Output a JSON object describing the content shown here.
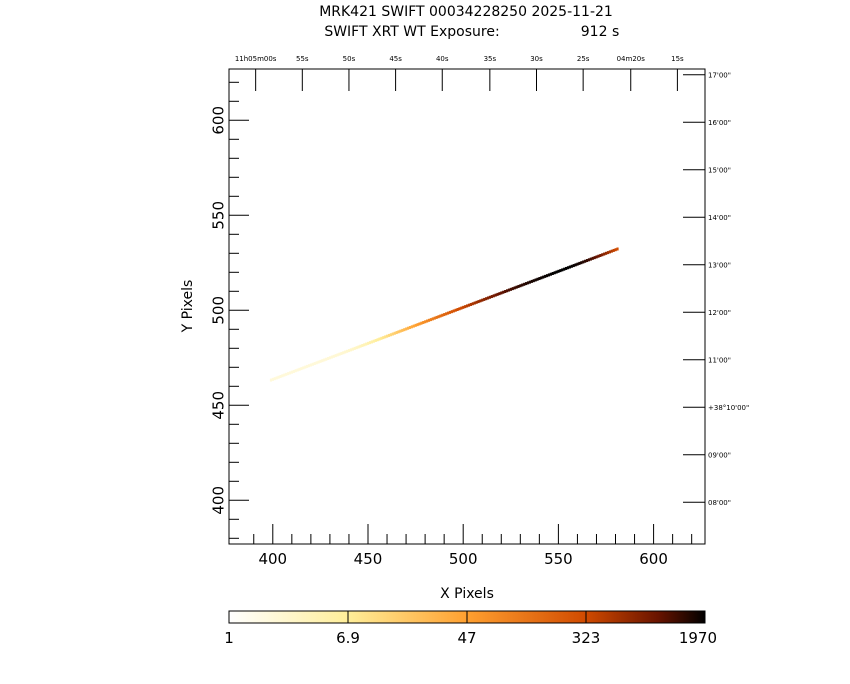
{
  "title_line1": "MRK421 SWIFT 00034228250 2025-11-21",
  "title_line2_prefix": "SWIFT XRT WT Exposure:",
  "title_line2_value": "912 s",
  "chart_data": {
    "type": "heatmap",
    "title": "MRK421 SWIFT 00034228250 2025-11-21",
    "subtitle": "SWIFT XRT WT Exposure: 912 s",
    "xlabel": "X Pixels",
    "ylabel": "Y Pixels",
    "xlim": [
      377,
      627
    ],
    "ylim": [
      377,
      627
    ],
    "x_ticks": [
      400,
      450,
      500,
      550,
      600
    ],
    "y_ticks": [
      400,
      450,
      500,
      550,
      600
    ],
    "x_tick_labels": [
      "400",
      "450",
      "500",
      "550",
      "600"
    ],
    "y_tick_labels": [
      "400",
      "450",
      "500",
      "550",
      "600"
    ],
    "ra_ticks": [
      {
        "label": "11h05m00s",
        "x": 391
      },
      {
        "label": "55s",
        "x": 415.5
      },
      {
        "label": "50s",
        "x": 440
      },
      {
        "label": "45s",
        "x": 464.5
      },
      {
        "label": "40s",
        "x": 489
      },
      {
        "label": "35s",
        "x": 514
      },
      {
        "label": "30s",
        "x": 538.5
      },
      {
        "label": "25s",
        "x": 563
      },
      {
        "label": "04m20s",
        "x": 588
      },
      {
        "label": "15s",
        "x": 612.5
      }
    ],
    "dec_ticks": [
      {
        "label": "17'00\"",
        "y": 624
      },
      {
        "label": "16'00\"",
        "y": 599
      },
      {
        "label": "15'00\"",
        "y": 574
      },
      {
        "label": "14'00\"",
        "y": 549
      },
      {
        "label": "13'00\"",
        "y": 524
      },
      {
        "label": "12'00\"",
        "y": 499
      },
      {
        "label": "11'00\"",
        "y": 474
      },
      {
        "label": "+38°10'00\"",
        "y": 449
      },
      {
        "label": "09'00\"",
        "y": 424
      },
      {
        "label": "08'00\"",
        "y": 399
      }
    ],
    "streak": {
      "x_start": 399,
      "y_start": 463,
      "x_end": 581,
      "y_end": 532,
      "peak_x": 553,
      "peak_y": 521,
      "peak_counts": 1970
    },
    "colorbar": {
      "scale": "log",
      "min": 1,
      "max": 1970,
      "tick_labels": [
        "1",
        "6.9",
        "47",
        "323",
        "1970"
      ],
      "colors": [
        "#ffffff",
        "#ffee99",
        "#ffb040",
        "#e65c00",
        "#7a1a00",
        "#000000"
      ]
    },
    "grid": false
  }
}
